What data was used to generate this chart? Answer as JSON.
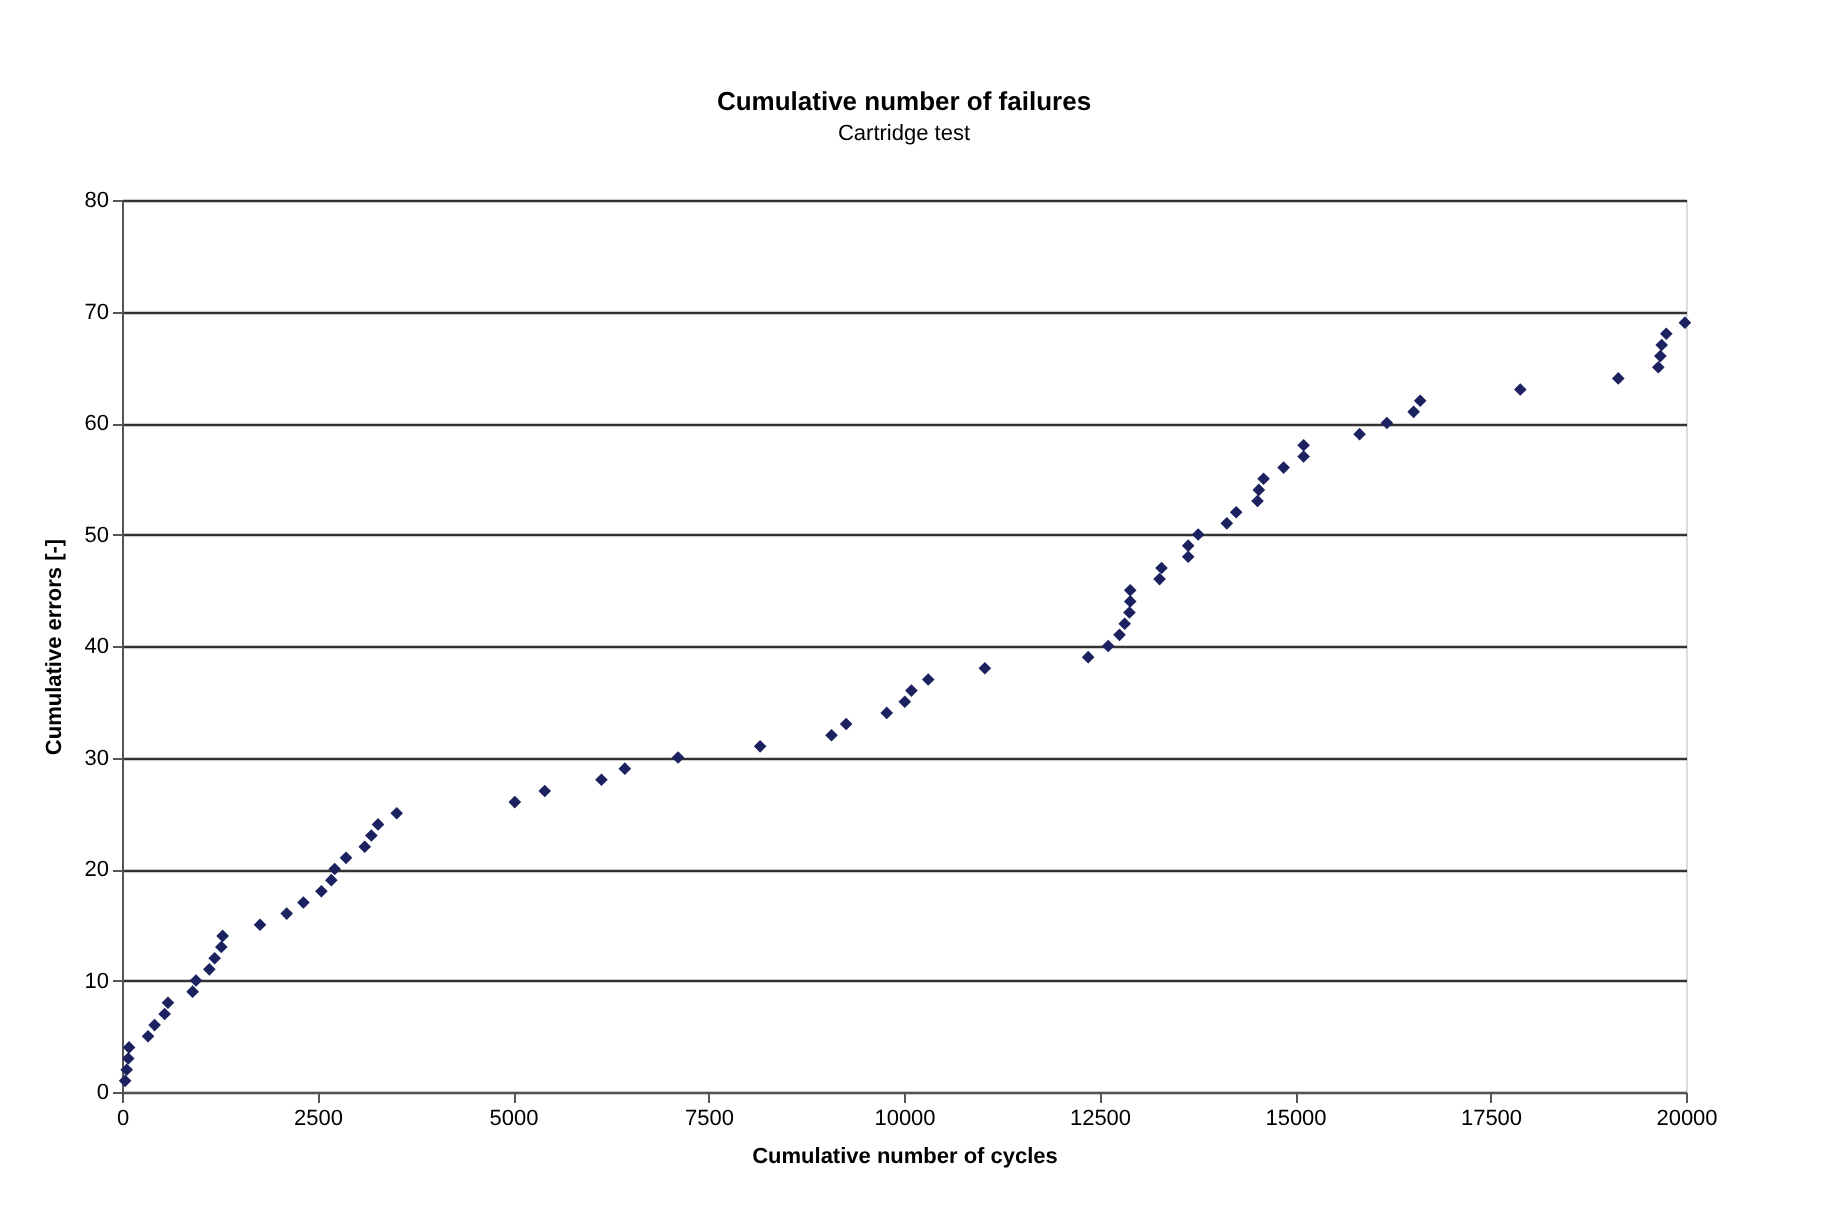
{
  "chart_data": {
    "type": "scatter",
    "title": "Cumulative number of failures",
    "subtitle": "Cartridge test",
    "xlabel": "Cumulative number of cycles",
    "ylabel": "Cumulative errors [-]",
    "x": [
      40,
      60,
      80,
      90,
      333,
      417,
      545,
      588,
      903,
      946,
      1117,
      1185,
      1270,
      1287,
      1765,
      2106,
      2320,
      2550,
      2677,
      2720,
      2865,
      3104,
      3189,
      3274,
      3513,
      5023,
      5406,
      6131,
      6430,
      7111,
      8160,
      9073,
      9260,
      9779,
      10010,
      10095,
      10310,
      11034,
      12355,
      12611,
      12756,
      12822,
      12883,
      12893,
      12893,
      13268,
      13293,
      13634,
      13634,
      13762,
      14128,
      14248,
      14521,
      14537,
      14598,
      14854,
      15110,
      15110,
      15826,
      16175,
      16517,
      16601,
      17881,
      19134,
      19646,
      19672,
      19689,
      19748,
      19986
    ],
    "series": [
      {
        "color": "#1c2160",
        "values": [
          1,
          2,
          3,
          4,
          5,
          6,
          7,
          8,
          9,
          10,
          11,
          12,
          13,
          14,
          15,
          16,
          17,
          18,
          19,
          20,
          21,
          22,
          23,
          24,
          25,
          26,
          27,
          28,
          29,
          30,
          31,
          32,
          33,
          34,
          35,
          36,
          37,
          38,
          39,
          40,
          41,
          42,
          43,
          44,
          45,
          46,
          47,
          48,
          49,
          50,
          51,
          52,
          53,
          54,
          55,
          56,
          57,
          58,
          59,
          60,
          61,
          62,
          63,
          64,
          65,
          66,
          67,
          68,
          69
        ]
      }
    ],
    "xlim": [
      0,
      20000
    ],
    "xticks": [
      0,
      2500,
      5000,
      7500,
      10000,
      12500,
      15000,
      17500,
      20000
    ],
    "ylim": [
      0,
      80
    ],
    "yticks": [
      0,
      10,
      20,
      30,
      40,
      50,
      60,
      70,
      80
    ],
    "grid": "y",
    "marker": "diamond",
    "legend": false
  }
}
